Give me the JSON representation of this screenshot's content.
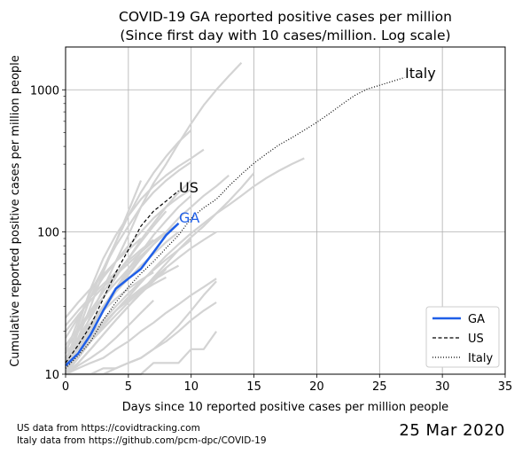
{
  "chart_data": {
    "type": "line",
    "title_line1": "COVID-19 GA reported positive cases per million",
    "title_line2": "(Since first day with 10 cases/million. Log scale)",
    "xlabel": "Days since 10 reported positive cases per million people",
    "ylabel": "Cumulative reported positive cases per million people",
    "xlim": [
      0,
      35
    ],
    "ylim": [
      10,
      2000
    ],
    "yscale": "log",
    "grid": true,
    "legend_position": "lower-right",
    "x_ticks": [
      0,
      5,
      10,
      15,
      20,
      25,
      30,
      35
    ],
    "y_ticks": [
      10,
      100,
      1000
    ],
    "colors": {
      "ga": "#1f5fe8",
      "us": "#000000",
      "italy": "#000000",
      "states": "#d3d3d3",
      "grid": "#b0b0b0"
    },
    "series": [
      {
        "name": "GA",
        "style": "solid",
        "x": [
          0,
          1,
          2,
          3,
          4,
          5,
          6,
          7,
          8,
          9
        ],
        "y": [
          11.5,
          14,
          19,
          28,
          40,
          47,
          55,
          72,
          95,
          115
        ]
      },
      {
        "name": "US",
        "style": "dashed",
        "x": [
          0,
          1,
          2,
          3,
          4,
          5,
          6,
          7,
          8,
          9
        ],
        "y": [
          12,
          16,
          22,
          34,
          52,
          75,
          110,
          140,
          165,
          195
        ]
      },
      {
        "name": "Italy",
        "style": "dotted",
        "x": [
          0,
          1,
          2,
          3,
          4,
          5,
          6,
          7,
          8,
          9,
          10,
          11,
          12,
          13,
          14,
          15,
          16,
          17,
          18,
          19,
          20,
          21,
          22,
          23,
          24,
          25,
          26,
          27
        ],
        "y": [
          11,
          13.5,
          17,
          24,
          32,
          41,
          51,
          62,
          77,
          95,
          125,
          148,
          170,
          210,
          255,
          305,
          355,
          410,
          460,
          520,
          590,
          680,
          790,
          910,
          1010,
          1075,
          1145,
          1220
        ]
      }
    ],
    "series_labels": {
      "us": "US",
      "ga": "GA",
      "italy": "Italy"
    },
    "background_series": [
      {
        "x": [
          0,
          1,
          2,
          3,
          4,
          5,
          6
        ],
        "y": [
          10,
          18,
          30,
          52,
          85,
          140,
          230
        ]
      },
      {
        "x": [
          0,
          1,
          2,
          3,
          4,
          5,
          6,
          7,
          8,
          9,
          10
        ],
        "y": [
          11,
          20,
          35,
          55,
          85,
          130,
          190,
          260,
          340,
          430,
          520
        ]
      },
      {
        "x": [
          0,
          1,
          2,
          3,
          4,
          5,
          6,
          7,
          8,
          9,
          10,
          11,
          12,
          13,
          14
        ],
        "y": [
          10,
          16,
          26,
          40,
          62,
          95,
          150,
          220,
          300,
          420,
          580,
          780,
          1000,
          1250,
          1550
        ]
      },
      {
        "x": [
          0,
          1,
          2,
          3,
          4,
          5,
          6,
          7,
          8,
          9,
          10,
          11
        ],
        "y": [
          12,
          22,
          40,
          65,
          95,
          130,
          170,
          210,
          250,
          290,
          330,
          380
        ]
      },
      {
        "x": [
          0,
          1,
          2,
          3,
          4,
          5,
          6,
          7,
          8,
          9,
          10
        ],
        "y": [
          14,
          24,
          38,
          55,
          80,
          110,
          150,
          190,
          230,
          270,
          310
        ]
      },
      {
        "x": [
          0,
          1,
          2,
          3,
          4,
          5,
          6,
          7,
          8,
          9,
          10,
          11,
          12,
          13
        ],
        "y": [
          10,
          14,
          20,
          28,
          38,
          50,
          65,
          82,
          100,
          125,
          150,
          180,
          210,
          250
        ]
      },
      {
        "x": [
          0,
          1,
          2,
          3,
          4,
          5,
          6,
          7,
          8,
          9,
          10
        ],
        "y": [
          11,
          15,
          21,
          29,
          40,
          55,
          72,
          95,
          120,
          150,
          180
        ]
      },
      {
        "x": [
          0,
          1,
          2,
          3,
          4,
          5,
          6,
          7,
          8,
          9,
          10,
          11,
          12,
          13,
          14,
          15,
          16,
          17,
          18,
          19
        ],
        "y": [
          10,
          13,
          17,
          22,
          28,
          35,
          44,
          55,
          68,
          82,
          98,
          115,
          135,
          155,
          180,
          210,
          240,
          270,
          300,
          330
        ]
      },
      {
        "x": [
          0,
          1,
          2,
          3,
          4,
          5,
          6,
          7,
          8
        ],
        "y": [
          12,
          16,
          22,
          30,
          40,
          52,
          66,
          82,
          100
        ]
      },
      {
        "x": [
          0,
          1,
          2,
          3,
          4,
          5,
          6,
          7,
          8,
          9
        ],
        "y": [
          13,
          17,
          23,
          30,
          38,
          47,
          58,
          70,
          85,
          100
        ]
      },
      {
        "x": [
          0,
          1,
          2,
          3,
          4,
          5,
          6,
          7,
          8
        ],
        "y": [
          10,
          12,
          15,
          19,
          24,
          30,
          37,
          45,
          55
        ]
      },
      {
        "x": [
          0,
          1,
          2,
          3,
          4,
          5,
          6,
          7
        ],
        "y": [
          10,
          11.5,
          13,
          15,
          18,
          22,
          27,
          33
        ]
      },
      {
        "x": [
          0,
          1,
          2,
          3,
          4,
          5,
          6,
          7,
          8,
          9,
          10,
          11,
          12
        ],
        "y": [
          10,
          10,
          10,
          11,
          11,
          12,
          13,
          15,
          17,
          20,
          24,
          28,
          32
        ]
      },
      {
        "x": [
          0,
          1,
          2,
          3,
          4,
          5,
          6,
          7,
          8,
          9,
          10,
          11,
          12
        ],
        "y": [
          10,
          10,
          10,
          10,
          11,
          12,
          13,
          15,
          18,
          22,
          28,
          36,
          45
        ]
      },
      {
        "x": [
          0,
          1,
          2,
          3,
          4,
          5,
          6,
          7,
          8,
          9,
          10,
          11,
          12,
          13,
          14,
          15
        ],
        "y": [
          10,
          12,
          15,
          19,
          24,
          30,
          38,
          48,
          60,
          75,
          92,
          110,
          135,
          165,
          205,
          260
        ]
      },
      {
        "x": [
          0,
          1,
          2,
          3,
          4,
          5,
          6,
          7,
          8,
          9
        ],
        "y": [
          15,
          20,
          27,
          35,
          44,
          55,
          68,
          82,
          98,
          115
        ]
      },
      {
        "x": [
          0,
          1,
          2,
          3,
          4,
          5,
          6,
          7,
          8
        ],
        "y": [
          16,
          21,
          28,
          38,
          50,
          65,
          85,
          110,
          140
        ]
      },
      {
        "x": [
          0,
          1,
          2,
          3,
          4,
          5,
          6,
          7,
          8,
          9,
          10
        ],
        "y": [
          18,
          25,
          35,
          48,
          62,
          80,
          100,
          125,
          150,
          175,
          200
        ]
      },
      {
        "x": [
          0,
          1,
          2,
          3,
          4,
          5,
          6,
          7,
          8
        ],
        "y": [
          20,
          26,
          33,
          41,
          50,
          60,
          72,
          86,
          100
        ]
      },
      {
        "x": [
          0,
          1,
          2,
          3,
          4,
          5,
          6,
          7
        ],
        "y": [
          22,
          28,
          35,
          43,
          52,
          63,
          75,
          88
        ]
      },
      {
        "x": [
          0,
          1,
          2,
          3,
          4,
          5,
          6,
          7,
          8,
          9,
          10
        ],
        "y": [
          12,
          15,
          19,
          24,
          30,
          37,
          45,
          54,
          64,
          75,
          88
        ]
      },
      {
        "x": [
          0,
          1,
          2,
          3,
          4,
          5,
          6,
          7,
          8,
          9
        ],
        "y": [
          10,
          13,
          17,
          22,
          28,
          34,
          40,
          46,
          52,
          58
        ]
      },
      {
        "x": [
          0,
          1,
          2,
          3,
          4,
          5,
          6,
          7,
          8
        ],
        "y": [
          11,
          14,
          18,
          23,
          28,
          33,
          38,
          43,
          48
        ]
      },
      {
        "x": [
          0,
          1,
          2,
          3,
          4,
          5,
          6,
          7
        ],
        "y": [
          14,
          18,
          23,
          28,
          34,
          40,
          46,
          52
        ]
      },
      {
        "x": [
          0,
          1,
          2,
          3,
          4,
          5,
          6,
          7,
          8,
          9,
          10,
          11,
          12
        ],
        "y": [
          10,
          10,
          10,
          10,
          10,
          10,
          10,
          12,
          12,
          12,
          15,
          15,
          20
        ]
      },
      {
        "x": [
          0,
          1,
          2,
          3,
          4,
          5,
          6,
          7,
          8,
          9,
          10,
          11,
          12
        ],
        "y": [
          10,
          11,
          12,
          13,
          15,
          17,
          20,
          23,
          27,
          31,
          36,
          41,
          47
        ]
      },
      {
        "x": [
          0,
          1,
          2,
          3,
          4,
          5,
          6,
          7,
          8,
          9,
          10,
          11,
          12
        ],
        "y": [
          12,
          14,
          17,
          21,
          26,
          32,
          39,
          47,
          56,
          66,
          77,
          88,
          100
        ]
      },
      {
        "x": [
          0,
          1,
          2,
          3,
          4,
          5,
          6
        ],
        "y": [
          25,
          32,
          40,
          50,
          62,
          75,
          90
        ]
      },
      {
        "x": [
          0,
          1,
          2,
          3,
          4,
          5,
          6,
          7,
          8,
          9,
          10
        ],
        "y": [
          13,
          18,
          25,
          35,
          48,
          65,
          88,
          115,
          150,
          190,
          230
        ]
      }
    ]
  },
  "footnotes": {
    "us_source": "US data from https://covidtracking.com",
    "italy_source": "Italy data from https://github.com/pcm-dpc/COVID-19"
  },
  "date_stamp": "25 Mar 2020"
}
